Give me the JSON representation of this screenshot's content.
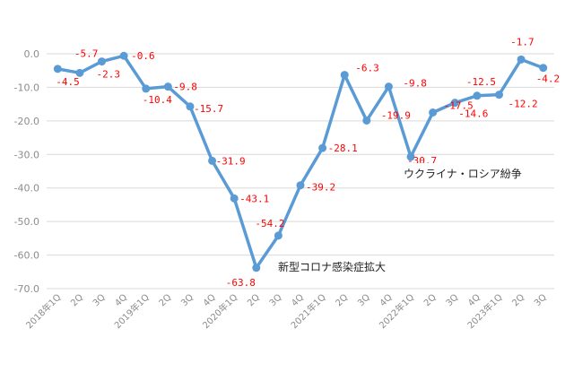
{
  "chart_data": {
    "type": "line",
    "title": "",
    "xlabel": "",
    "ylabel": "",
    "categories": [
      "2018年1Q",
      "2Q",
      "3Q",
      "4Q",
      "2019年1Q",
      "2Q",
      "3Q",
      "4Q",
      "2020年1Q",
      "2Q",
      "3Q",
      "4Q",
      "2021年1Q",
      "2Q",
      "3Q",
      "4Q",
      "2022年1Q",
      "2Q",
      "3Q",
      "4Q",
      "2023年1Q",
      "2Q",
      "3Q"
    ],
    "series": [
      {
        "values": [
          -4.5,
          -5.7,
          -2.3,
          -0.6,
          -10.4,
          -9.8,
          -15.7,
          -31.9,
          -43.1,
          -63.8,
          -54.2,
          -39.2,
          -28.1,
          -6.3,
          -19.9,
          -9.8,
          -30.7,
          -17.5,
          -14.6,
          -12.5,
          -12.2,
          -1.7,
          -4.2
        ],
        "labels": [
          "-4.5",
          "-5.7",
          "-2.3",
          "-0.6",
          "-10.4",
          "-9.8",
          "-15.7",
          "-31.9",
          "-43.1",
          "-63.8",
          "-54.2",
          "-39.2",
          "-28.1",
          "-6.3",
          "-19.9",
          "-9.8",
          "-30.7",
          "-17.5",
          "-14.6",
          "-12.5",
          "-12.2",
          "-1.7",
          "-4.2"
        ],
        "color": "#5b9bd5"
      }
    ],
    "yticks": [
      "0.0",
      "-10.0",
      "-20.0",
      "-30.0",
      "-40.0",
      "-50.0",
      "-60.0",
      "-70.0"
    ],
    "ylim": [
      -70,
      0
    ],
    "grid": true,
    "label_color": "#ff0000",
    "annotations": [
      {
        "text": "新型コロナ感染症拡大",
        "at_category": "2Q",
        "at_index": 9
      },
      {
        "text": "ウクライナ・ロシア紛争",
        "at_category": "2022年1Q",
        "at_index": 16
      }
    ]
  }
}
